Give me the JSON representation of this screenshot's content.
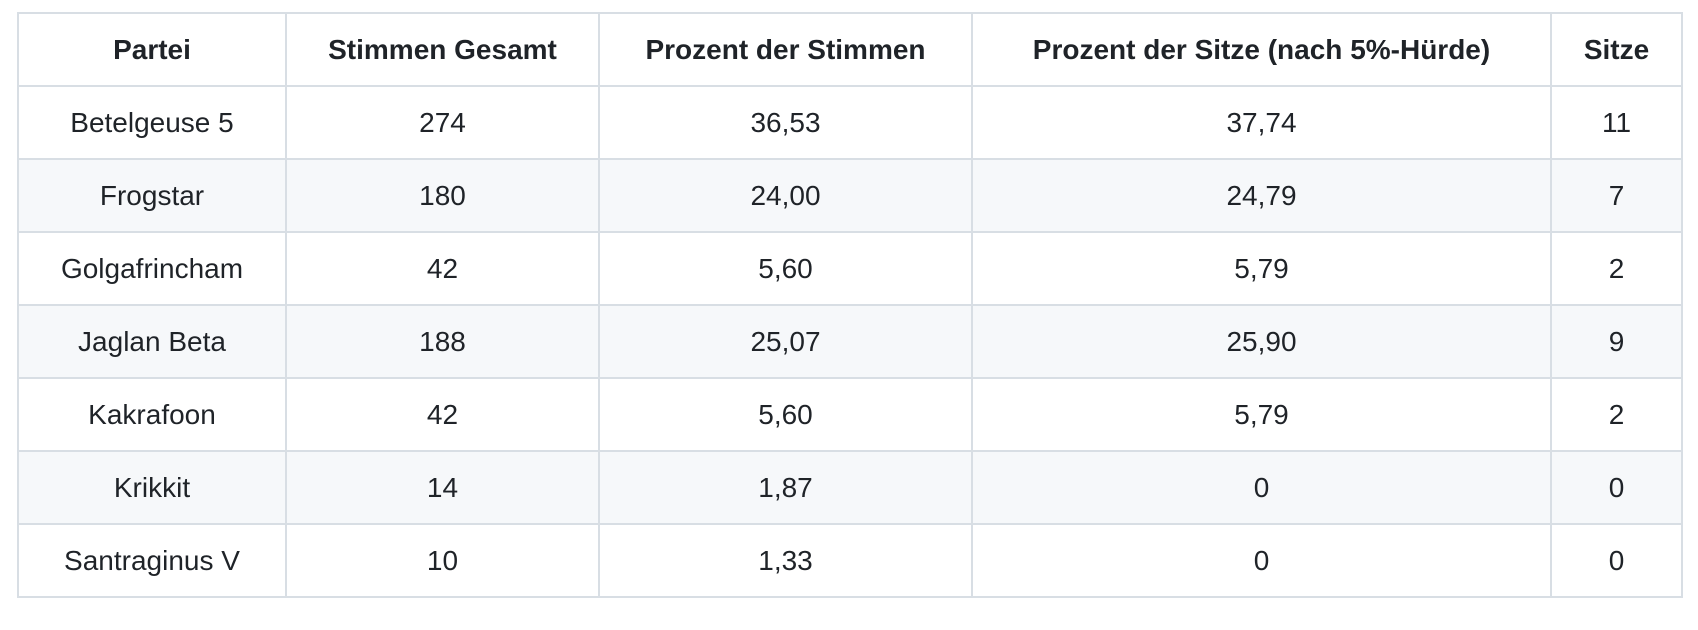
{
  "table": {
    "name": "election-results",
    "columns": [
      "Partei",
      "Stimmen Gesamt",
      "Prozent der Stimmen",
      "Prozent der Sitze (nach 5%-Hürde)",
      "Sitze"
    ],
    "rows": [
      [
        "Betelgeuse 5",
        "274",
        "36,53",
        "37,74",
        "11"
      ],
      [
        "Frogstar",
        "180",
        "24,00",
        "24,79",
        "7"
      ],
      [
        "Golgafrincham",
        "42",
        "5,60",
        "5,79",
        "2"
      ],
      [
        "Jaglan Beta",
        "188",
        "25,07",
        "25,90",
        "9"
      ],
      [
        "Kakrafoon",
        "42",
        "5,60",
        "5,79",
        "2"
      ],
      [
        "Krikkit",
        "14",
        "1,87",
        "0",
        "0"
      ],
      [
        "Santraginus V",
        "10",
        "1,33",
        "0",
        "0"
      ]
    ]
  },
  "colors": {
    "text": "#1f2328",
    "border": "#d8dee4",
    "stripe": "#f6f8fa",
    "background": "#ffffff"
  }
}
